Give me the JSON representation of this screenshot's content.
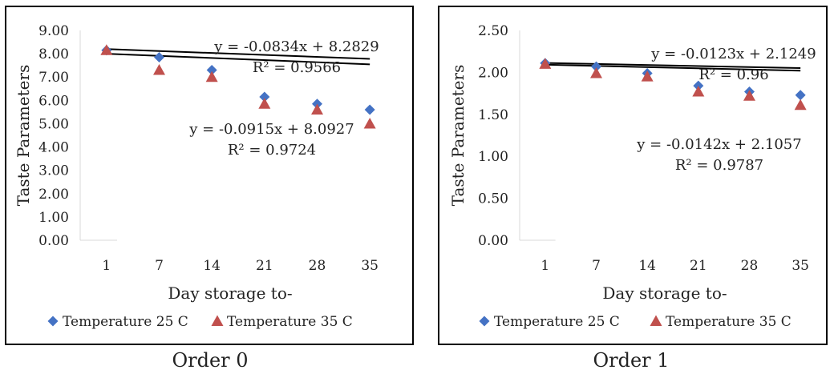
{
  "chart_data": [
    {
      "type": "scatter",
      "xlabel": "Day storage to-",
      "ylabel": "Taste Parameters",
      "categories": [
        "1",
        "7",
        "14",
        "21",
        "28",
        "35"
      ],
      "ylim": [
        0,
        9
      ],
      "yticks": [
        "0.00",
        "1.00",
        "2.00",
        "3.00",
        "4.00",
        "5.00",
        "6.00",
        "7.00",
        "8.00",
        "9.00"
      ],
      "series": [
        {
          "name": "Temperature 25 C",
          "marker": "diamond",
          "color": "#4472c4",
          "values": [
            8.15,
            7.85,
            7.3,
            6.15,
            5.85,
            5.6
          ]
        },
        {
          "name": "Temperature 35 C",
          "marker": "triangle",
          "color": "#c0504d",
          "values": [
            8.15,
            7.3,
            7.0,
            5.85,
            5.6,
            5.0
          ]
        }
      ],
      "trendlines": [
        {
          "slope": -0.0834,
          "intercept": 8.2829,
          "equation": "y = -0.0834x + 8.2829",
          "r2": "R² = 0.9566"
        },
        {
          "slope": -0.0915,
          "intercept": 8.0927,
          "equation": "y = -0.0915x + 8.0927",
          "r2": "R² = 0.9724"
        }
      ],
      "legend": "bottom",
      "caption": "Order 0"
    },
    {
      "type": "scatter",
      "xlabel": "Day storage to-",
      "ylabel": "Taste Parameters",
      "categories": [
        "1",
        "7",
        "14",
        "21",
        "28",
        "35"
      ],
      "ylim": [
        0,
        2.5
      ],
      "yticks": [
        "0.00",
        "0.50",
        "1.00",
        "1.50",
        "2.00",
        "2.50"
      ],
      "series": [
        {
          "name": "Temperature 25 C",
          "marker": "diamond",
          "color": "#4472c4",
          "values": [
            2.11,
            2.07,
            1.99,
            1.84,
            1.77,
            1.73
          ]
        },
        {
          "name": "Temperature 35 C",
          "marker": "triangle",
          "color": "#c0504d",
          "values": [
            2.1,
            1.99,
            1.95,
            1.77,
            1.72,
            1.61
          ]
        }
      ],
      "trendlines": [
        {
          "slope": -0.0123,
          "intercept": 2.1249,
          "equation": "y = -0.0123x + 2.1249",
          "r2": "R² = 0.96"
        },
        {
          "slope": -0.0142,
          "intercept": 2.1057,
          "equation": "y = -0.0142x + 2.1057",
          "r2": "R² = 0.9787"
        }
      ],
      "legend": "bottom",
      "caption": "Order 1"
    }
  ]
}
